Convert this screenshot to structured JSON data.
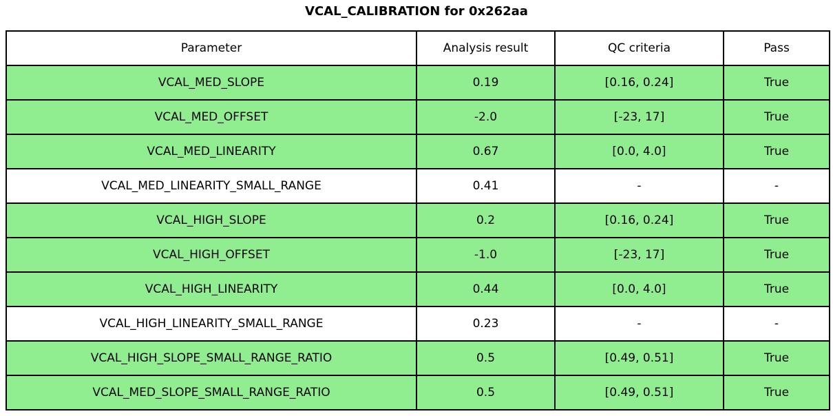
{
  "title": "VCAL_CALIBRATION for 0x262aa",
  "colors": {
    "pass_row_bg": "#90EE90",
    "neutral_row_bg": "#FFFFFF",
    "border": "#000000",
    "text": "#000000",
    "page_bg": "#FFFFFF"
  },
  "chart_data": {
    "type": "table",
    "title": "VCAL_CALIBRATION for 0x262aa",
    "columns": [
      "Parameter",
      "Analysis result",
      "QC criteria",
      "Pass"
    ],
    "rows": [
      [
        "VCAL_MED_SLOPE",
        "0.19",
        "[0.16, 0.24]",
        "True"
      ],
      [
        "VCAL_MED_OFFSET",
        "-2.0",
        "[-23, 17]",
        "True"
      ],
      [
        "VCAL_MED_LINEARITY",
        "0.67",
        "[0.0, 4.0]",
        "True"
      ],
      [
        "VCAL_MED_LINEARITY_SMALL_RANGE",
        "0.41",
        "-",
        "-"
      ],
      [
        "VCAL_HIGH_SLOPE",
        "0.2",
        "[0.16, 0.24]",
        "True"
      ],
      [
        "VCAL_HIGH_OFFSET",
        "-1.0",
        "[-23, 17]",
        "True"
      ],
      [
        "VCAL_HIGH_LINEARITY",
        "0.44",
        "[0.0, 4.0]",
        "True"
      ],
      [
        "VCAL_HIGH_LINEARITY_SMALL_RANGE",
        "0.23",
        "-",
        "-"
      ],
      [
        "VCAL_HIGH_SLOPE_SMALL_RANGE_RATIO",
        "0.5",
        "[0.49, 0.51]",
        "True"
      ],
      [
        "VCAL_MED_SLOPE_SMALL_RANGE_RATIO",
        "0.5",
        "[0.49, 0.51]",
        "True"
      ]
    ],
    "row_highlight": [
      true,
      true,
      true,
      false,
      true,
      true,
      true,
      false,
      true,
      true
    ],
    "layout": {
      "grid": "full-borders",
      "cell_alignment": "center",
      "highlight_meaning": "green row = QC criteria applied and passed; white row = informational only, no QC criteria"
    }
  }
}
